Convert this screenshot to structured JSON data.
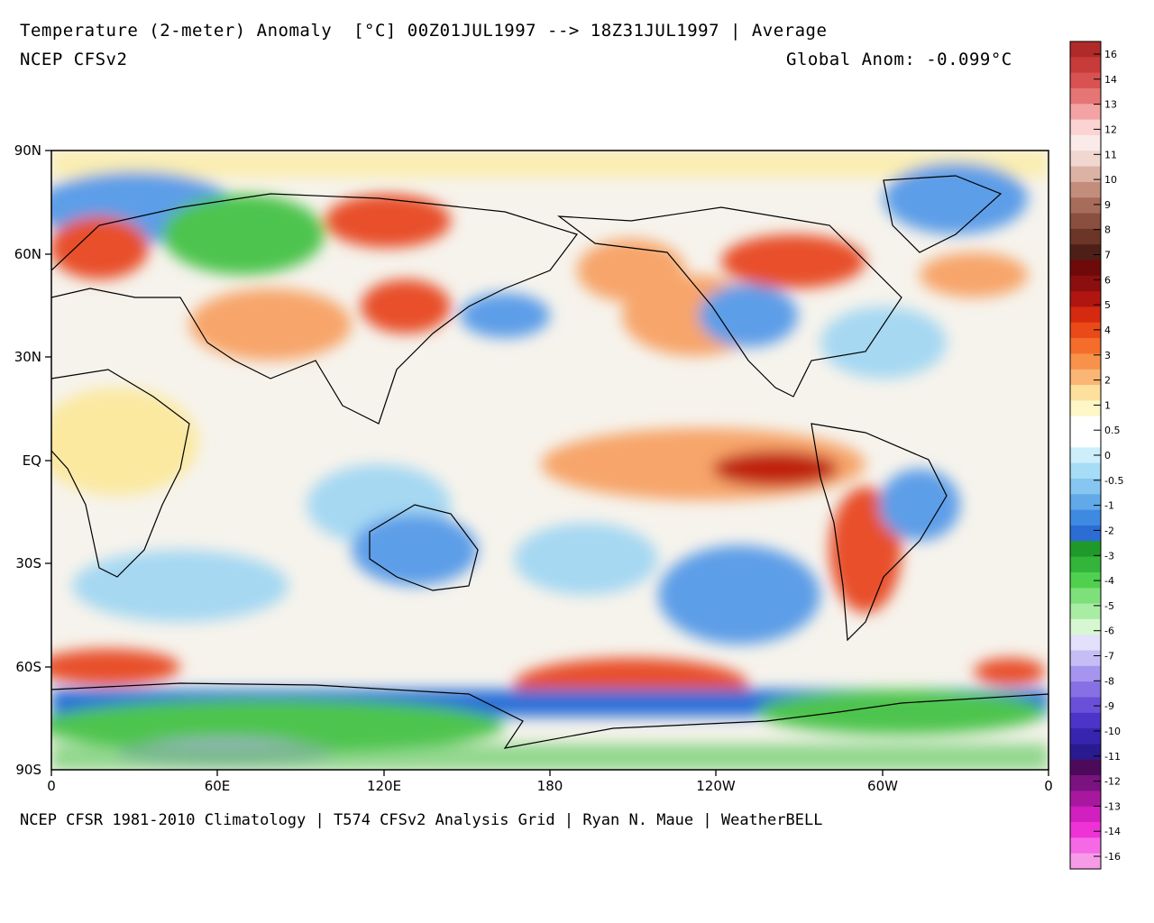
{
  "header": {
    "title": "Temperature (2-meter) Anomaly  [°C] 00Z01JUL1997 --> 18Z31JUL1997 | Average",
    "model": "NCEP CFSv2",
    "global_anom": "Global Anom: -0.099°C"
  },
  "footer": "NCEP CFSR 1981-2010 Climatology | T574 CFSv2 Analysis Grid | Ryan N. Maue | WeatherBELL",
  "map": {
    "lon_ticks": [
      "0",
      "60E",
      "120E",
      "180",
      "120W",
      "60W",
      "0"
    ],
    "lat_ticks": [
      "90N",
      "60N",
      "30N",
      "EQ",
      "30S",
      "60S",
      "90S"
    ],
    "colors": {
      "ocean_base": "#f4f1ea",
      "warm": "#f7a56b",
      "hot": "#e8502a",
      "very_hot": "#c0230f",
      "cool": "#a6d8f2",
      "cold": "#5d9ee8",
      "very_cold": "#2c6fd8",
      "green": "#4ec44e",
      "lavender": "#b9a8ee",
      "yellow": "#fbe9a0"
    }
  },
  "colorbar": {
    "labels": [
      "16",
      "14",
      "13",
      "12",
      "11",
      "10",
      "9",
      "8",
      "7",
      "6",
      "5",
      "4",
      "3",
      "2",
      "1",
      "0.5",
      "0",
      "-0.5",
      "-1",
      "-2",
      "-3",
      "-4",
      "-5",
      "-6",
      "-7",
      "-8",
      "-9",
      "-10",
      "-11",
      "-12",
      "-13",
      "-14",
      "-16"
    ],
    "colors": [
      "#b02a2a",
      "#c83b3b",
      "#d95252",
      "#e67575",
      "#f3a3a3",
      "#fbd3d3",
      "#fbeaea",
      "#f0d7cf",
      "#dcb2a5",
      "#c38d7c",
      "#a86c5a",
      "#8a4f3e",
      "#6b3528",
      "#4d1f17",
      "#6e0a0a",
      "#8c0f0f",
      "#b0160f",
      "#d42a10",
      "#ea4a18",
      "#f46d2a",
      "#f8924a",
      "#fbb574",
      "#fde09d",
      "#fdf6c6",
      "#ffffff",
      "#ffffff",
      "#cdeefb",
      "#a6dcf5",
      "#86c6f0",
      "#62a9ea",
      "#3f8ae1",
      "#2b6dd5",
      "#1f9a2a",
      "#33b43a",
      "#4fd04f",
      "#7ee07a",
      "#a9eca3",
      "#d7f7d2",
      "#e3e0fb",
      "#c6bdf5",
      "#a695ee",
      "#8670e4",
      "#6a50d8",
      "#4c34c8",
      "#3725b0",
      "#2a1a90",
      "#4d0a5a",
      "#7a1280",
      "#a8189f",
      "#d11fc0",
      "#ee32d6",
      "#f569e6",
      "#f79be9"
    ]
  }
}
